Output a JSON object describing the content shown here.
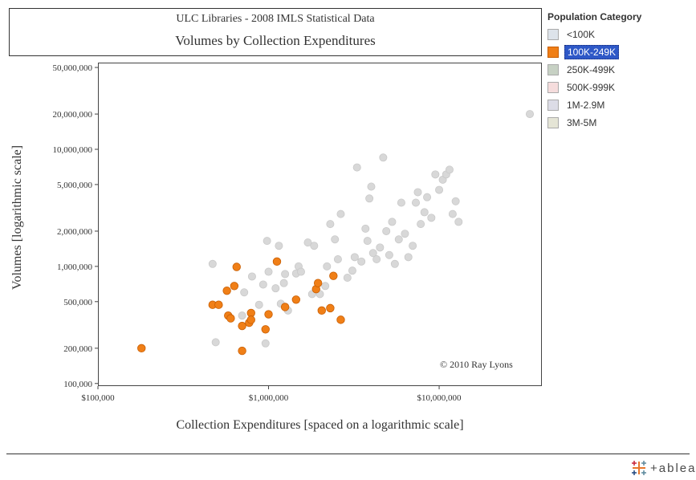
{
  "chart_data": {
    "type": "scatter",
    "title": "ULC Libraries - 2008 IMLS Statistical Data",
    "subtitle": "Volumes by Collection Expenditures",
    "xlabel": "Collection Expenditures [spaced on a logarithmic scale]",
    "ylabel": "Volumes [logarithmic scale]",
    "x_scale": "log",
    "y_scale": "log",
    "xlim": [
      100000,
      40000000
    ],
    "ylim": [
      95000,
      55000000
    ],
    "x_ticks": [
      100000,
      1000000,
      10000000
    ],
    "x_tick_labels": [
      "$100,000",
      "$1,000,000",
      "$10,000,000"
    ],
    "y_ticks": [
      100000,
      200000,
      500000,
      1000000,
      2000000,
      5000000,
      10000000,
      20000000,
      50000000
    ],
    "y_tick_labels": [
      "100,000",
      "200,000",
      "500,000",
      "1,000,000",
      "2,000,000",
      "5,000,000",
      "10,000,000",
      "20,000,000",
      "50,000,000"
    ],
    "grid": false,
    "legend": {
      "title": "Population Category",
      "placement": "right",
      "selected": "100K-249K"
    },
    "annotation": "© 2010 Ray Lyons",
    "series": [
      {
        "name": "<100K",
        "color": "#dde3ea",
        "highlighted": false,
        "points": []
      },
      {
        "name": "100K-249K",
        "color": "#f07f17",
        "highlighted": true,
        "points": [
          {
            "x": 180000,
            "y": 200000
          },
          {
            "x": 470000,
            "y": 470000
          },
          {
            "x": 510000,
            "y": 470000
          },
          {
            "x": 570000,
            "y": 620000
          },
          {
            "x": 580000,
            "y": 380000
          },
          {
            "x": 600000,
            "y": 360000
          },
          {
            "x": 630000,
            "y": 680000
          },
          {
            "x": 650000,
            "y": 990000
          },
          {
            "x": 700000,
            "y": 190000
          },
          {
            "x": 700000,
            "y": 310000
          },
          {
            "x": 770000,
            "y": 330000
          },
          {
            "x": 790000,
            "y": 400000
          },
          {
            "x": 790000,
            "y": 350000
          },
          {
            "x": 960000,
            "y": 290000
          },
          {
            "x": 1000000,
            "y": 390000
          },
          {
            "x": 1120000,
            "y": 1100000
          },
          {
            "x": 1250000,
            "y": 450000
          },
          {
            "x": 1450000,
            "y": 520000
          },
          {
            "x": 1900000,
            "y": 640000
          },
          {
            "x": 1950000,
            "y": 720000
          },
          {
            "x": 2050000,
            "y": 420000
          },
          {
            "x": 2300000,
            "y": 440000
          },
          {
            "x": 2400000,
            "y": 830000
          },
          {
            "x": 2650000,
            "y": 350000
          }
        ]
      },
      {
        "name": "250K-499K",
        "color": "#c7d1c4",
        "highlighted": false,
        "points": []
      },
      {
        "name": "500K-999K",
        "color": "#f5dcdc",
        "highlighted": false,
        "points": []
      },
      {
        "name": "1M-2.9M",
        "color": "#dcdce6",
        "highlighted": false,
        "points": []
      },
      {
        "name": "3M-5M",
        "color": "#e5e5d6",
        "highlighted": false,
        "points": []
      }
    ],
    "unselected_points_color": "#d8d8d8",
    "unselected_points": [
      {
        "x": 470000,
        "y": 1050000
      },
      {
        "x": 490000,
        "y": 225000
      },
      {
        "x": 700000,
        "y": 380000
      },
      {
        "x": 720000,
        "y": 600000
      },
      {
        "x": 800000,
        "y": 820000
      },
      {
        "x": 880000,
        "y": 470000
      },
      {
        "x": 930000,
        "y": 700000
      },
      {
        "x": 960000,
        "y": 220000
      },
      {
        "x": 980000,
        "y": 1650000
      },
      {
        "x": 1000000,
        "y": 900000
      },
      {
        "x": 1100000,
        "y": 650000
      },
      {
        "x": 1150000,
        "y": 1500000
      },
      {
        "x": 1180000,
        "y": 480000
      },
      {
        "x": 1230000,
        "y": 720000
      },
      {
        "x": 1250000,
        "y": 860000
      },
      {
        "x": 1300000,
        "y": 420000
      },
      {
        "x": 1450000,
        "y": 870000
      },
      {
        "x": 1500000,
        "y": 1000000
      },
      {
        "x": 1550000,
        "y": 900000
      },
      {
        "x": 1700000,
        "y": 1600000
      },
      {
        "x": 1800000,
        "y": 580000
      },
      {
        "x": 1850000,
        "y": 1500000
      },
      {
        "x": 2000000,
        "y": 580000
      },
      {
        "x": 2150000,
        "y": 680000
      },
      {
        "x": 2200000,
        "y": 1000000
      },
      {
        "x": 2300000,
        "y": 2300000
      },
      {
        "x": 2450000,
        "y": 1700000
      },
      {
        "x": 2550000,
        "y": 1150000
      },
      {
        "x": 2650000,
        "y": 2800000
      },
      {
        "x": 2900000,
        "y": 800000
      },
      {
        "x": 3100000,
        "y": 920000
      },
      {
        "x": 3200000,
        "y": 1200000
      },
      {
        "x": 3300000,
        "y": 7000000
      },
      {
        "x": 3500000,
        "y": 1100000
      },
      {
        "x": 3700000,
        "y": 2100000
      },
      {
        "x": 3800000,
        "y": 1650000
      },
      {
        "x": 3900000,
        "y": 3800000
      },
      {
        "x": 4000000,
        "y": 4800000
      },
      {
        "x": 4100000,
        "y": 1300000
      },
      {
        "x": 4300000,
        "y": 1150000
      },
      {
        "x": 4500000,
        "y": 1450000
      },
      {
        "x": 4700000,
        "y": 8500000
      },
      {
        "x": 4900000,
        "y": 2000000
      },
      {
        "x": 5100000,
        "y": 1250000
      },
      {
        "x": 5300000,
        "y": 2400000
      },
      {
        "x": 5500000,
        "y": 1050000
      },
      {
        "x": 5800000,
        "y": 1700000
      },
      {
        "x": 6000000,
        "y": 3500000
      },
      {
        "x": 6300000,
        "y": 1900000
      },
      {
        "x": 6600000,
        "y": 1200000
      },
      {
        "x": 7000000,
        "y": 1500000
      },
      {
        "x": 7300000,
        "y": 3500000
      },
      {
        "x": 7500000,
        "y": 4300000
      },
      {
        "x": 7800000,
        "y": 2300000
      },
      {
        "x": 8200000,
        "y": 2900000
      },
      {
        "x": 8500000,
        "y": 3900000
      },
      {
        "x": 9000000,
        "y": 2600000
      },
      {
        "x": 9500000,
        "y": 6100000
      },
      {
        "x": 10000000,
        "y": 4500000
      },
      {
        "x": 10500000,
        "y": 5500000
      },
      {
        "x": 11000000,
        "y": 6100000
      },
      {
        "x": 11500000,
        "y": 6700000
      },
      {
        "x": 12000000,
        "y": 2800000
      },
      {
        "x": 12500000,
        "y": 3600000
      },
      {
        "x": 13000000,
        "y": 2400000
      },
      {
        "x": 34000000,
        "y": 20000000
      }
    ]
  },
  "branding": {
    "logo_text": "+ableau"
  }
}
